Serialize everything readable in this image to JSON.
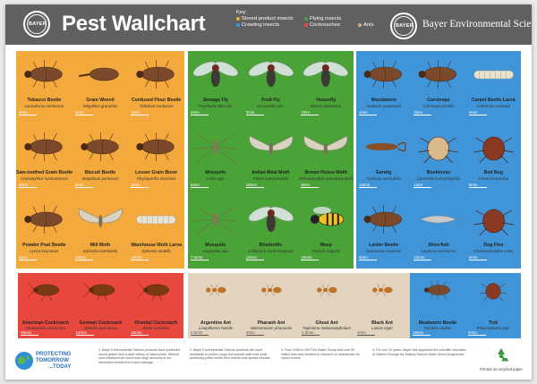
{
  "header": {
    "logo_text": "BAYER",
    "title": "Pest Wallchart",
    "key_title": "Key:",
    "key_items": [
      {
        "label": "Stored product insects",
        "color": "#f4a93c"
      },
      {
        "label": "Flying insects",
        "color": "#4aa336"
      },
      {
        "label": "Crawling insects",
        "color": "#3f95d8"
      },
      {
        "label": "Cockroaches",
        "color": "#e8473e"
      },
      {
        "label": "Ants",
        "color": "#c8b193"
      }
    ],
    "brand_right": "Bayer Environmental Science"
  },
  "panels": {
    "stored": {
      "color": "#f4a93c",
      "cells": [
        {
          "name": "Tobacco Beetle",
          "latin": "Lasioderma serricorne",
          "size": "3mm",
          "icon": "beetle-icon"
        },
        {
          "name": "Grain Weevil",
          "latin": "Sitophilus granarius",
          "size": "4mm",
          "icon": "weevil-icon"
        },
        {
          "name": "Confused Flour Beetle",
          "latin": "Tribolium confusum",
          "size": "4mm",
          "icon": "beetle-icon"
        },
        {
          "name": "Saw-toothed Grain Beetle",
          "latin": "Oryzaephilus surinamensis",
          "size": "3mm",
          "icon": "beetle-icon"
        },
        {
          "name": "Biscuit Beetle",
          "latin": "Stegobium paniceum",
          "size": "3mm",
          "icon": "beetle-icon"
        },
        {
          "name": "Lesser Grain Borer",
          "latin": "Rhyzopertha dominica",
          "size": "3mm",
          "icon": "beetle-icon"
        },
        {
          "name": "Powder Post Beetle",
          "latin": "Lyctus brunneus",
          "size": "5mm",
          "icon": "beetle-icon"
        },
        {
          "name": "Mill Moth",
          "latin": "Ephestia kuehniella",
          "size": "10mm",
          "icon": "moth-icon"
        },
        {
          "name": "Warehouse Moth Larva",
          "latin": "Ephestia elutella",
          "size": "12mm",
          "icon": "larva-icon"
        }
      ]
    },
    "flying": {
      "color": "#4aa336",
      "cells": [
        {
          "name": "Sewage Fly",
          "latin": "Psychoda alternata",
          "size": "2mm",
          "icon": "fly-icon"
        },
        {
          "name": "Fruit Fly",
          "latin": "Drosophila spp.",
          "size": "3mm",
          "icon": "fly-icon"
        },
        {
          "name": "Housefly",
          "latin": "Musca domestica",
          "size": "7mm",
          "icon": "fly-icon"
        },
        {
          "name": "Mosquito",
          "latin": "Culex spp.",
          "size": "6mm",
          "icon": "mosquito-icon"
        },
        {
          "name": "Indian Meal Moth",
          "latin": "Plodia interpunctella",
          "size": "10mm",
          "icon": "moth-icon"
        },
        {
          "name": "Brown House Moth",
          "latin": "Hofmannophila pseudospretella",
          "size": "9mm",
          "icon": "moth-icon"
        },
        {
          "name": "Mosquito",
          "latin": "Anopheles spp.",
          "size": "7.5mm",
          "icon": "mosquito-icon"
        },
        {
          "name": "Bluebottle",
          "latin": "Calliphora erythrocephala",
          "size": "12mm",
          "icon": "fly-icon"
        },
        {
          "name": "Wasp",
          "latin": "Vespula vulgaris",
          "size": "15mm",
          "icon": "wasp-icon"
        }
      ]
    },
    "crawling": {
      "color": "#3f95d8",
      "cells": [
        {
          "name": "Woodworm",
          "latin": "Anobium punctatum",
          "size": "4mm",
          "icon": "beetle-icon"
        },
        {
          "name": "Carcinops",
          "latin": "Carcinops pumilio",
          "size": "3mm",
          "icon": "beetle-icon"
        },
        {
          "name": "Carpet Beetle Larva",
          "latin": "Anthrenus verbasci",
          "size": "4mm",
          "icon": "larva-icon"
        },
        {
          "name": "Earwig",
          "latin": "Forficula auricularia",
          "size": "13mm",
          "icon": "earwig-icon"
        },
        {
          "name": "Booklouse",
          "latin": "Liposcelis bostrychophila",
          "size": "1mm",
          "icon": "louse-icon"
        },
        {
          "name": "Bed Bug",
          "latin": "Cimex lectularius",
          "size": "5mm",
          "icon": "bedbug-icon"
        },
        {
          "name": "Larder Beetle",
          "latin": "Dermestes lardarius",
          "size": "8mm",
          "icon": "beetle-icon"
        },
        {
          "name": "Silverfish",
          "latin": "Lepisma saccharina",
          "size": "10mm",
          "icon": "silverfish-icon"
        },
        {
          "name": "Dog Flea",
          "latin": "Ctenocephalides canis",
          "size": "2mm",
          "icon": "flea-icon"
        }
      ]
    },
    "cockroaches": {
      "color": "#e8473e",
      "cells": [
        {
          "name": "American Cockroach",
          "latin": "Periplaneta americana",
          "size": "35mm",
          "icon": "cockroach-icon"
        },
        {
          "name": "German Cockroach",
          "latin": "Blattella germanica",
          "size": "12mm",
          "icon": "cockroach-icon"
        },
        {
          "name": "Oriental Cockroach",
          "latin": "Blatta orientalis",
          "size": "25mm",
          "icon": "cockroach-icon"
        }
      ]
    },
    "ants": {
      "color": "#e3d4c0",
      "cells": [
        {
          "name": "Argentine Ant",
          "latin": "Linepithema humile",
          "size": "2.5mm",
          "icon": "ant-icon"
        },
        {
          "name": "Pharaoh Ant",
          "latin": "Monomorium pharaonis",
          "size": "2mm",
          "icon": "ant-icon"
        },
        {
          "name": "Ghost Ant",
          "latin": "Tapinoma melanocephalum",
          "size": "1.5mm",
          "icon": "ant-icon"
        },
        {
          "name": "Black Ant",
          "latin": "Lasius niger",
          "size": "4mm",
          "icon": "ant-icon"
        }
      ]
    },
    "extra": {
      "color": "#3f95d8",
      "cells": [
        {
          "name": "Mealworm Beetle",
          "latin": "Tenebrio molitor",
          "size": "15mm",
          "icon": "beetle-icon"
        },
        {
          "name": "Tick",
          "latin": "Rhipicephalus spp.",
          "size": "4mm",
          "icon": "tick-icon"
        }
      ]
    }
  },
  "footer": {
    "ptt_line1": "PROTECTING",
    "ptt_line2": "TOMORROW",
    "ptt_line3": "...TODAY",
    "notes": [
      "1. Bayer Environmental Science products have protected stored grains from a wide variety of insect pests. Without such treatment we would lose large amounts of our harvested cereals from insect damage.",
      "2. Bayer Environmental Science products are used worldwide to protect crops and provide safe food while protecting public health from insects that spread disease.",
      "3. From 1996 to 2007 the Bayer Group sold over 50 million nets and invested in research on insecticides for vector control.",
      "4. For over 20 years, Bayer has supported the scientific education of children through the Making Science Make Sense programme."
    ],
    "recycle_text": "Printed on recycled paper"
  }
}
